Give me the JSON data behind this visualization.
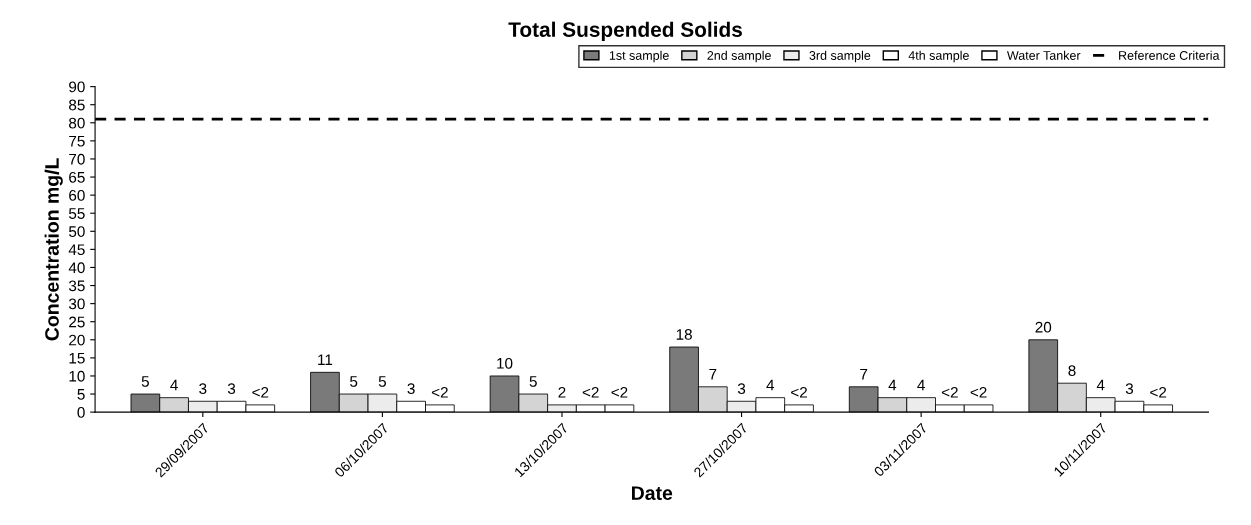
{
  "chart_data": {
    "type": "bar",
    "title": "Total Suspended Solids",
    "xlabel": "Date",
    "ylabel": "Concentration mg/L",
    "categories": [
      "29/09/2007",
      "06/10/2007",
      "13/10/2007",
      "27/10/2007",
      "03/11/2007",
      "10/11/2007"
    ],
    "series": [
      {
        "name": "1st sample",
        "color": "#7a7a7a",
        "values": [
          5,
          11,
          10,
          18,
          7,
          20
        ],
        "value_labels": [
          "5",
          "11",
          "10",
          "18",
          "7",
          "20"
        ]
      },
      {
        "name": "2nd sample",
        "color": "#d4d4d4",
        "values": [
          4,
          5,
          5,
          7,
          4,
          8
        ],
        "value_labels": [
          "4",
          "5",
          "5",
          "7",
          "4",
          "8"
        ]
      },
      {
        "name": "3rd sample",
        "color": "#ececec",
        "values": [
          3,
          5,
          2,
          3,
          4,
          4
        ],
        "value_labels": [
          "3",
          "5",
          "2",
          "3",
          "4",
          "4"
        ]
      },
      {
        "name": "4th sample",
        "color": "#ffffff",
        "values": [
          3,
          3,
          2,
          4,
          2,
          3
        ],
        "value_labels": [
          "3",
          "3",
          "<2",
          "4",
          "<2",
          "3"
        ]
      },
      {
        "name": "Water Tanker",
        "color": "#ffffff",
        "values": [
          2,
          2,
          2,
          2,
          2,
          2
        ],
        "value_labels": [
          "<2",
          "<2",
          "<2",
          "<2",
          "<2",
          "<2"
        ]
      }
    ],
    "ref_lines": [
      {
        "axis": "y",
        "value": 81,
        "label": "Reference Criteria",
        "color": "#000000",
        "line_style": "dashed"
      }
    ],
    "ylim": [
      0,
      90
    ],
    "yticks": [
      0,
      5,
      10,
      15,
      20,
      25,
      30,
      35,
      40,
      45,
      50,
      55,
      60,
      65,
      70,
      75,
      80,
      85,
      90
    ],
    "grid": false,
    "legend": "top right"
  }
}
